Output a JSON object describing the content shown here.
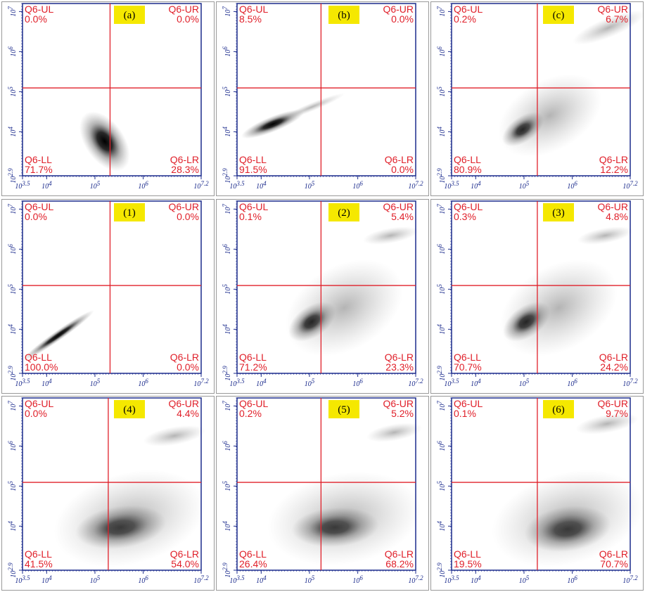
{
  "axes": {
    "tick_base": "10",
    "xlim": [
      3.5,
      7.2
    ],
    "xticks": [
      3.5,
      4,
      5,
      6,
      7.2
    ],
    "ylim": [
      2.9,
      7.2
    ],
    "yticks": [
      2.9,
      4,
      5,
      6,
      7
    ]
  },
  "panels": [
    {
      "label": "(a)",
      "UL": {
        "name": "Q6-UL",
        "percent": "0.0%"
      },
      "UR": {
        "name": "Q6-UR",
        "percent": "0.0%"
      },
      "LL": {
        "name": "Q6-LL",
        "percent": "71.7%"
      },
      "LR": {
        "name": "Q6-LR",
        "percent": "28.3%"
      }
    },
    {
      "label": "(b)",
      "UL": {
        "name": "Q6-UL",
        "percent": "8.5%"
      },
      "UR": {
        "name": "Q6-UR",
        "percent": "0.0%"
      },
      "LL": {
        "name": "Q6-LL",
        "percent": "91.5%"
      },
      "LR": {
        "name": "Q6-LR",
        "percent": "0.0%"
      }
    },
    {
      "label": "(c)",
      "UL": {
        "name": "Q6-UL",
        "percent": "0.2%"
      },
      "UR": {
        "name": "Q6-UR",
        "percent": "6.7%"
      },
      "LL": {
        "name": "Q6-LL",
        "percent": "80.9%"
      },
      "LR": {
        "name": "Q6-LR",
        "percent": "12.2%"
      }
    },
    {
      "label": "(1)",
      "UL": {
        "name": "Q6-UL",
        "percent": "0.0%"
      },
      "UR": {
        "name": "Q6-UR",
        "percent": "0.0%"
      },
      "LL": {
        "name": "Q6-LL",
        "percent": "100.0%"
      },
      "LR": {
        "name": "Q6-LR",
        "percent": "0.0%"
      }
    },
    {
      "label": "(2)",
      "UL": {
        "name": "Q6-UL",
        "percent": "0.1%"
      },
      "UR": {
        "name": "Q6-UR",
        "percent": "5.4%"
      },
      "LL": {
        "name": "Q6-LL",
        "percent": "71.2%"
      },
      "LR": {
        "name": "Q6-LR",
        "percent": "23.3%"
      }
    },
    {
      "label": "(3)",
      "UL": {
        "name": "Q6-UL",
        "percent": "0.3%"
      },
      "UR": {
        "name": "Q6-UR",
        "percent": "4.8%"
      },
      "LL": {
        "name": "Q6-LL",
        "percent": "70.7%"
      },
      "LR": {
        "name": "Q6-LR",
        "percent": "24.2%"
      }
    },
    {
      "label": "(4)",
      "UL": {
        "name": "Q6-UL",
        "percent": "0.0%"
      },
      "UR": {
        "name": "Q6-UR",
        "percent": "4.4%"
      },
      "LL": {
        "name": "Q6-LL",
        "percent": "41.5%"
      },
      "LR": {
        "name": "Q6-LR",
        "percent": "54.0%"
      }
    },
    {
      "label": "(5)",
      "UL": {
        "name": "Q6-UL",
        "percent": "0.2%"
      },
      "UR": {
        "name": "Q6-UR",
        "percent": "5.2%"
      },
      "LL": {
        "name": "Q6-LL",
        "percent": "26.4%"
      },
      "LR": {
        "name": "Q6-LR",
        "percent": "68.2%"
      }
    },
    {
      "label": "(6)",
      "UL": {
        "name": "Q6-UL",
        "percent": "0.1%"
      },
      "UR": {
        "name": "Q6-UR",
        "percent": "9.7%"
      },
      "LL": {
        "name": "Q6-LL",
        "percent": "19.5%"
      },
      "LR": {
        "name": "Q6-LR",
        "percent": "70.7%"
      }
    }
  ]
}
